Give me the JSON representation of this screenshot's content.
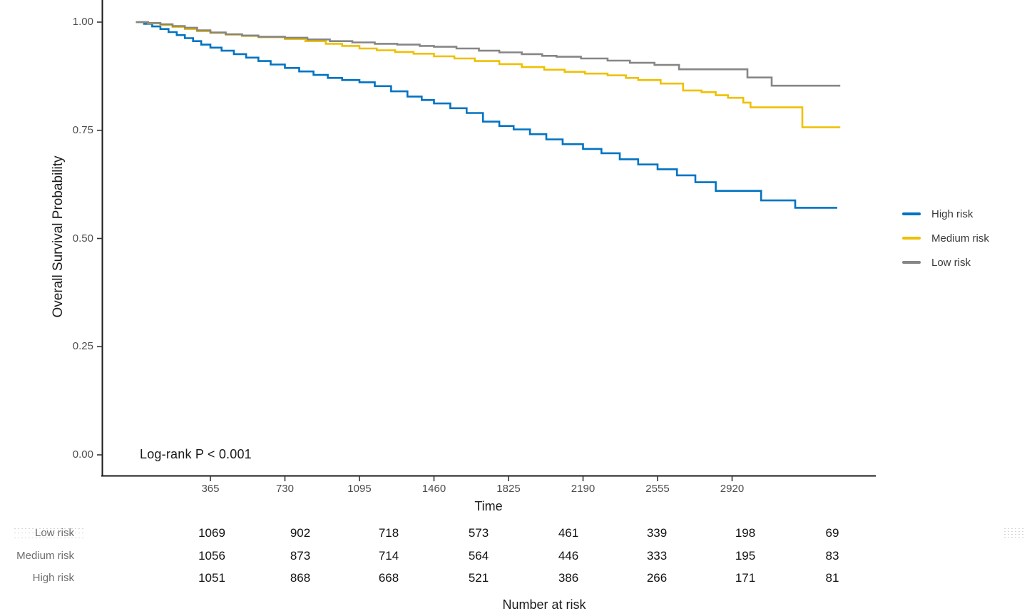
{
  "figure": {
    "y_axis_title": "Overall Survival Probability",
    "x_axis_title": "Time",
    "annotation": "Log-rank P < 0.001",
    "risk_table_title": "Number at risk"
  },
  "legend": {
    "items": [
      {
        "label": "High risk",
        "color": "#0073C2"
      },
      {
        "label": "Medium risk",
        "color": "#EFC000"
      },
      {
        "label": "Low risk",
        "color": "#868686"
      }
    ]
  },
  "chart_data": {
    "type": "line",
    "subtype": "kaplan-meier-step",
    "title": "",
    "xlabel": "Time",
    "ylabel": "Overall Survival Probability",
    "xlim": [
      0,
      3650
    ],
    "ylim": [
      0.0,
      1.0
    ],
    "grid": false,
    "legend_position": "right",
    "annotation": "Log-rank P < 0.001",
    "x_ticks": [
      365,
      730,
      1095,
      1460,
      1825,
      2190,
      2555,
      2920
    ],
    "y_ticks": [
      {
        "value": 1.0,
        "label": "1.00"
      },
      {
        "value": 0.75,
        "label": "0.75"
      },
      {
        "value": 0.5,
        "label": "0.50"
      },
      {
        "value": 0.25,
        "label": "0.25"
      },
      {
        "value": 0.0,
        "label": "0.00"
      }
    ],
    "series": [
      {
        "name": "High risk",
        "color": "#0073C2",
        "points": [
          [
            0,
            1.0
          ],
          [
            40,
            0.996
          ],
          [
            80,
            0.99
          ],
          [
            120,
            0.984
          ],
          [
            160,
            0.977
          ],
          [
            200,
            0.97
          ],
          [
            240,
            0.963
          ],
          [
            280,
            0.956
          ],
          [
            320,
            0.948
          ],
          [
            365,
            0.941
          ],
          [
            420,
            0.934
          ],
          [
            480,
            0.926
          ],
          [
            540,
            0.918
          ],
          [
            600,
            0.91
          ],
          [
            660,
            0.902
          ],
          [
            730,
            0.894
          ],
          [
            800,
            0.886
          ],
          [
            870,
            0.878
          ],
          [
            940,
            0.871
          ],
          [
            1010,
            0.866
          ],
          [
            1095,
            0.861
          ],
          [
            1170,
            0.852
          ],
          [
            1250,
            0.84
          ],
          [
            1330,
            0.828
          ],
          [
            1400,
            0.82
          ],
          [
            1460,
            0.812
          ],
          [
            1540,
            0.801
          ],
          [
            1620,
            0.79
          ],
          [
            1700,
            0.77
          ],
          [
            1780,
            0.76
          ],
          [
            1850,
            0.752
          ],
          [
            1930,
            0.741
          ],
          [
            2010,
            0.729
          ],
          [
            2090,
            0.718
          ],
          [
            2190,
            0.707
          ],
          [
            2280,
            0.697
          ],
          [
            2370,
            0.683
          ],
          [
            2460,
            0.671
          ],
          [
            2555,
            0.66
          ],
          [
            2650,
            0.646
          ],
          [
            2740,
            0.63
          ],
          [
            2840,
            0.61
          ],
          [
            3062,
            0.588
          ],
          [
            3229,
            0.571
          ],
          [
            3435,
            0.571
          ]
        ]
      },
      {
        "name": "Medium risk",
        "color": "#EFC000",
        "points": [
          [
            0,
            1.0
          ],
          [
            60,
            0.997
          ],
          [
            120,
            0.993
          ],
          [
            180,
            0.989
          ],
          [
            240,
            0.984
          ],
          [
            300,
            0.979
          ],
          [
            365,
            0.975
          ],
          [
            440,
            0.971
          ],
          [
            520,
            0.968
          ],
          [
            600,
            0.965
          ],
          [
            730,
            0.961
          ],
          [
            830,
            0.956
          ],
          [
            930,
            0.95
          ],
          [
            1010,
            0.945
          ],
          [
            1095,
            0.939
          ],
          [
            1180,
            0.935
          ],
          [
            1270,
            0.931
          ],
          [
            1360,
            0.927
          ],
          [
            1460,
            0.921
          ],
          [
            1560,
            0.916
          ],
          [
            1660,
            0.91
          ],
          [
            1780,
            0.903
          ],
          [
            1890,
            0.896
          ],
          [
            2000,
            0.89
          ],
          [
            2100,
            0.885
          ],
          [
            2200,
            0.881
          ],
          [
            2310,
            0.877
          ],
          [
            2400,
            0.871
          ],
          [
            2460,
            0.866
          ],
          [
            2570,
            0.858
          ],
          [
            2680,
            0.842
          ],
          [
            2770,
            0.838
          ],
          [
            2840,
            0.831
          ],
          [
            2900,
            0.825
          ],
          [
            2975,
            0.814
          ],
          [
            3010,
            0.803
          ],
          [
            3264,
            0.757
          ],
          [
            3450,
            0.757
          ]
        ]
      },
      {
        "name": "Low risk",
        "color": "#868686",
        "points": [
          [
            0,
            1.0
          ],
          [
            60,
            0.998
          ],
          [
            120,
            0.995
          ],
          [
            180,
            0.991
          ],
          [
            240,
            0.987
          ],
          [
            300,
            0.981
          ],
          [
            365,
            0.976
          ],
          [
            440,
            0.972
          ],
          [
            520,
            0.969
          ],
          [
            600,
            0.966
          ],
          [
            730,
            0.964
          ],
          [
            840,
            0.96
          ],
          [
            950,
            0.956
          ],
          [
            1060,
            0.953
          ],
          [
            1170,
            0.95
          ],
          [
            1280,
            0.948
          ],
          [
            1390,
            0.945
          ],
          [
            1460,
            0.943
          ],
          [
            1570,
            0.939
          ],
          [
            1680,
            0.934
          ],
          [
            1780,
            0.93
          ],
          [
            1890,
            0.926
          ],
          [
            1990,
            0.922
          ],
          [
            2060,
            0.92
          ],
          [
            2180,
            0.916
          ],
          [
            2310,
            0.911
          ],
          [
            2420,
            0.906
          ],
          [
            2540,
            0.901
          ],
          [
            2660,
            0.891
          ],
          [
            2995,
            0.872
          ],
          [
            3114,
            0.853
          ],
          [
            3450,
            0.853
          ]
        ]
      }
    ]
  },
  "risk_table": {
    "title": "Number at risk",
    "time_points": [
      365,
      730,
      1095,
      1460,
      1825,
      2190,
      2555,
      2920
    ],
    "rows": [
      {
        "label": "Low risk",
        "values": [
          1069,
          902,
          718,
          573,
          461,
          339,
          198,
          69
        ]
      },
      {
        "label": "Medium risk",
        "values": [
          1056,
          873,
          714,
          564,
          446,
          333,
          195,
          83
        ]
      },
      {
        "label": "High risk",
        "values": [
          1051,
          868,
          668,
          521,
          386,
          266,
          171,
          81
        ]
      }
    ]
  }
}
